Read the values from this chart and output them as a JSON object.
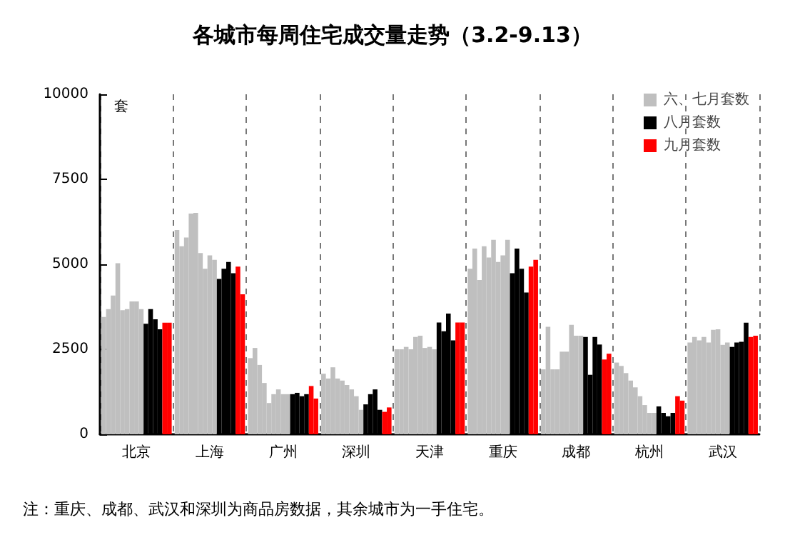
{
  "chart_data": {
    "type": "bar",
    "title": "各城市每周住宅成交量走势（3.2-9.13）",
    "ylabel": "套",
    "categories": [
      "北京",
      "上海",
      "广州",
      "深圳",
      "天津",
      "重庆",
      "成都",
      "杭州",
      "武汉"
    ],
    "series": [
      {
        "name": "六、七月套数",
        "color": "#bfbfbf",
        "values": [
          3450,
          6010,
          2240,
          1780,
          2500,
          4870,
          1910,
          2110,
          2700
        ]
      },
      {
        "color": "#bfbfbf",
        "values": [
          3680,
          5530,
          2540,
          1640,
          2500,
          5460,
          3160,
          2010,
          2860
        ]
      },
      {
        "color": "#bfbfbf",
        "values": [
          4080,
          5790,
          2040,
          1970,
          2570,
          4540,
          1910,
          1800,
          2760
        ]
      },
      {
        "color": "#bfbfbf",
        "values": [
          5030,
          6490,
          1510,
          1640,
          2500,
          5530,
          1910,
          1580,
          2860
        ]
      },
      {
        "color": "#bfbfbf",
        "values": [
          3650,
          6510,
          920,
          1580,
          2860,
          5200,
          2430,
          1380,
          2700
        ]
      },
      {
        "color": "#bfbfbf",
        "values": [
          3680,
          5330,
          1180,
          1450,
          2900,
          5720,
          2430,
          1120,
          3070
        ]
      },
      {
        "color": "#bfbfbf",
        "values": [
          3910,
          4870,
          1320,
          1320,
          2540,
          5070,
          3220,
          860,
          3090
        ]
      },
      {
        "color": "#bfbfbf",
        "values": [
          3910,
          5260,
          1180,
          1120,
          2570,
          5260,
          2900,
          630,
          2630
        ]
      },
      {
        "color": "#bfbfbf",
        "values": [
          3680,
          5130,
          1180,
          720,
          2500,
          5720,
          2900,
          630,
          2700
        ]
      },
      {
        "name": "八月套数",
        "color": "#000000",
        "values": [
          3250,
          4570,
          1180,
          880,
          3290,
          4740,
          2860,
          820,
          2570
        ]
      },
      {
        "color": "#000000",
        "values": [
          3680,
          4870,
          1220,
          1180,
          3030,
          5460,
          1750,
          630,
          2700
        ]
      },
      {
        "color": "#000000",
        "values": [
          3380,
          5070,
          1120,
          1320,
          3550,
          4870,
          2860,
          530,
          2720
        ]
      },
      {
        "color": "#000000",
        "values": [
          3090,
          4740,
          1180,
          720,
          2760,
          4170,
          2640,
          630,
          3280
        ]
      },
      {
        "name": "九月套数",
        "color": "#ff0000",
        "values": [
          3280,
          4930,
          1420,
          660,
          3290,
          4930,
          2200,
          1120,
          2860
        ]
      },
      {
        "color": "#ff0000",
        "values": [
          3280,
          4120,
          1050,
          790,
          3290,
          5130,
          2370,
          990,
          2900
        ]
      }
    ],
    "ylim": [
      0,
      10000
    ],
    "yticks": [
      0,
      2500,
      5000,
      7500,
      10000
    ],
    "grid": "x",
    "legend": "top right",
    "annotations": [
      "注：重庆、成都、武汉和深圳为商品房数据，其余城市为一手住宅。"
    ]
  }
}
